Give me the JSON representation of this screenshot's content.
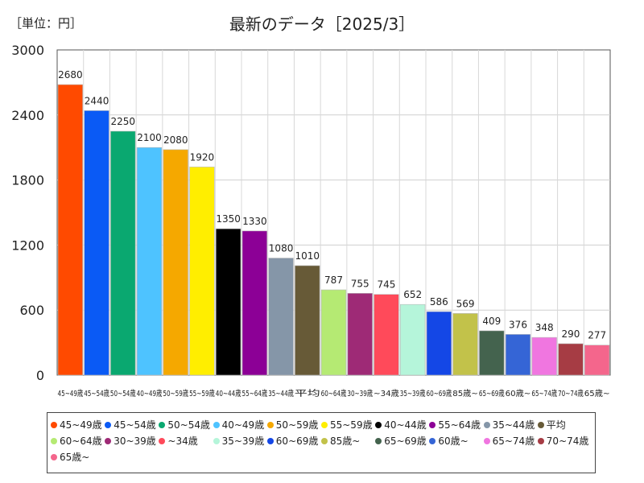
{
  "chart_data": {
    "type": "bar",
    "title": "最新のデータ［2025/3］",
    "unit_label": "［単位：円］",
    "ylim": [
      0,
      3000
    ],
    "yticks": [
      0,
      600,
      1200,
      1800,
      2400,
      3000
    ],
    "grid": true,
    "legend_position": "bottom",
    "categories": [
      "45~49歳",
      "45~54歳",
      "50~54歳",
      "40~49歳",
      "50~59歳",
      "55~59歳",
      "40~44歳",
      "55~64歳",
      "35~44歳",
      "平均",
      "60~64歳",
      "30~39歳",
      "~34歳",
      "35~39歳",
      "60~69歳",
      "85歳~",
      "65~69歳",
      "60歳~",
      "65~74歳",
      "70~74歳",
      "65歳~"
    ],
    "tick_labels": [
      "45~49歳",
      "45~54歳",
      "50~54歳",
      "40~49歳",
      "50~59歳",
      "55~59歳",
      "40~44歳",
      "55~64歳",
      "35~44歳",
      "平均",
      "60~64歳",
      "30~39歳",
      "~34歳",
      "35~39歳",
      "60~69歳",
      "85歳~",
      "65~69歳",
      "60歳~",
      "65~74歳",
      "70~74歳",
      "65歳~"
    ],
    "values": [
      2680,
      2440,
      2250,
      2100,
      2080,
      1920,
      1350,
      1330,
      1080,
      1010,
      787,
      755,
      745,
      652,
      586,
      569,
      409,
      376,
      348,
      290,
      277
    ],
    "colors": [
      "#ff4a00",
      "#0a5af5",
      "#0aa870",
      "#4ec3ff",
      "#f5a800",
      "#ffee00",
      "#000000",
      "#8c0096",
      "#8596a8",
      "#675a37",
      "#b5ea73",
      "#9e2a76",
      "#ff4a5a",
      "#b5f5da",
      "#1447e6",
      "#c2c24a",
      "#44634e",
      "#3565d6",
      "#f076e0",
      "#a63c44",
      "#f4668c"
    ]
  }
}
